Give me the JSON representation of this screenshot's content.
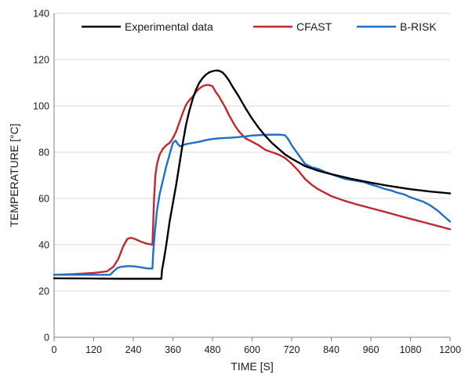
{
  "chart_data": {
    "type": "line",
    "title": "",
    "xlabel": "TIME [S]",
    "ylabel": "TEMPERATURE [°C]",
    "xlim": [
      0,
      1200
    ],
    "ylim": [
      0,
      140
    ],
    "xticks": [
      "0",
      "120",
      "240",
      "360",
      "480",
      "600",
      "720",
      "840",
      "960",
      "1080",
      "1200"
    ],
    "yticks": [
      "0",
      "20",
      "40",
      "60",
      "80",
      "100",
      "120",
      "140"
    ],
    "grid": "horizontal",
    "legend_position": "top",
    "series": [
      {
        "name": "Experimental data",
        "color": "#000000",
        "points": [
          [
            0,
            25.5
          ],
          [
            120,
            25.4
          ],
          [
            200,
            25.3
          ],
          [
            300,
            25.3
          ],
          [
            325,
            25.3
          ],
          [
            327,
            29
          ],
          [
            332,
            33
          ],
          [
            340,
            40
          ],
          [
            350,
            50
          ],
          [
            360,
            58
          ],
          [
            370,
            66
          ],
          [
            380,
            75
          ],
          [
            390,
            84
          ],
          [
            400,
            92
          ],
          [
            410,
            98
          ],
          [
            420,
            103
          ],
          [
            430,
            107
          ],
          [
            440,
            110
          ],
          [
            450,
            112
          ],
          [
            460,
            113.5
          ],
          [
            470,
            114.5
          ],
          [
            480,
            115
          ],
          [
            490,
            115.3
          ],
          [
            500,
            115.2
          ],
          [
            510,
            114.5
          ],
          [
            520,
            113
          ],
          [
            530,
            111
          ],
          [
            540,
            108.5
          ],
          [
            560,
            104
          ],
          [
            580,
            99
          ],
          [
            600,
            94.5
          ],
          [
            620,
            90.5
          ],
          [
            640,
            87
          ],
          [
            660,
            84
          ],
          [
            680,
            81.5
          ],
          [
            700,
            79
          ],
          [
            720,
            77.2
          ],
          [
            760,
            74
          ],
          [
            800,
            72
          ],
          [
            840,
            70.5
          ],
          [
            900,
            68.5
          ],
          [
            960,
            66.8
          ],
          [
            1020,
            65.3
          ],
          [
            1080,
            64
          ],
          [
            1140,
            63
          ],
          [
            1200,
            62.2
          ]
        ]
      },
      {
        "name": "CFAST",
        "color": "#c0282d",
        "points": [
          [
            0,
            27
          ],
          [
            60,
            27.3
          ],
          [
            120,
            27.8
          ],
          [
            160,
            28.5
          ],
          [
            180,
            30.5
          ],
          [
            195,
            34
          ],
          [
            210,
            39.5
          ],
          [
            222,
            42.5
          ],
          [
            232,
            43
          ],
          [
            245,
            42.5
          ],
          [
            260,
            41.5
          ],
          [
            280,
            40.5
          ],
          [
            298,
            40
          ],
          [
            300,
            48
          ],
          [
            303,
            60
          ],
          [
            307,
            70
          ],
          [
            312,
            75
          ],
          [
            320,
            79
          ],
          [
            330,
            81.5
          ],
          [
            340,
            83
          ],
          [
            350,
            84
          ],
          [
            360,
            86
          ],
          [
            370,
            89
          ],
          [
            380,
            93
          ],
          [
            390,
            97
          ],
          [
            400,
            100.5
          ],
          [
            410,
            102.5
          ],
          [
            420,
            104
          ],
          [
            430,
            106
          ],
          [
            440,
            107.5
          ],
          [
            450,
            108.5
          ],
          [
            460,
            109
          ],
          [
            470,
            109
          ],
          [
            480,
            108.5
          ],
          [
            490,
            106
          ],
          [
            500,
            104
          ],
          [
            510,
            101.5
          ],
          [
            520,
            99
          ],
          [
            530,
            96
          ],
          [
            540,
            93.5
          ],
          [
            550,
            91
          ],
          [
            560,
            89
          ],
          [
            570,
            87.5
          ],
          [
            580,
            86
          ],
          [
            600,
            84.5
          ],
          [
            620,
            83
          ],
          [
            640,
            81
          ],
          [
            660,
            80
          ],
          [
            680,
            79
          ],
          [
            700,
            77.5
          ],
          [
            720,
            75
          ],
          [
            740,
            72
          ],
          [
            760,
            68.5
          ],
          [
            780,
            66
          ],
          [
            800,
            64
          ],
          [
            840,
            61
          ],
          [
            880,
            59
          ],
          [
            920,
            57.3
          ],
          [
            960,
            55.8
          ],
          [
            1000,
            54.3
          ],
          [
            1040,
            52.7
          ],
          [
            1080,
            51.2
          ],
          [
            1120,
            49.7
          ],
          [
            1160,
            48.2
          ],
          [
            1200,
            46.7
          ]
        ]
      },
      {
        "name": "B-RISK",
        "color": "#1f6fc5",
        "points": [
          [
            0,
            27
          ],
          [
            120,
            27
          ],
          [
            170,
            27
          ],
          [
            180,
            28.5
          ],
          [
            192,
            30
          ],
          [
            205,
            30.5
          ],
          [
            225,
            30.8
          ],
          [
            245,
            30.6
          ],
          [
            265,
            30.2
          ],
          [
            280,
            29.8
          ],
          [
            298,
            29.7
          ],
          [
            300,
            36
          ],
          [
            305,
            45
          ],
          [
            312,
            55
          ],
          [
            320,
            62
          ],
          [
            330,
            68
          ],
          [
            340,
            74
          ],
          [
            350,
            79
          ],
          [
            360,
            84
          ],
          [
            368,
            85
          ],
          [
            375,
            83.5
          ],
          [
            382,
            82.5
          ],
          [
            390,
            83
          ],
          [
            400,
            83.5
          ],
          [
            420,
            84
          ],
          [
            440,
            84.5
          ],
          [
            460,
            85.2
          ],
          [
            480,
            85.7
          ],
          [
            500,
            86
          ],
          [
            540,
            86.3
          ],
          [
            580,
            86.8
          ],
          [
            600,
            87.2
          ],
          [
            640,
            87.5
          ],
          [
            680,
            87.6
          ],
          [
            700,
            87.3
          ],
          [
            710,
            85.5
          ],
          [
            720,
            83
          ],
          [
            740,
            79
          ],
          [
            760,
            75
          ],
          [
            780,
            73.5
          ],
          [
            800,
            72.8
          ],
          [
            820,
            71.5
          ],
          [
            840,
            70.5
          ],
          [
            860,
            69.5
          ],
          [
            880,
            68.5
          ],
          [
            900,
            68
          ],
          [
            920,
            67.5
          ],
          [
            940,
            67
          ],
          [
            960,
            66
          ],
          [
            980,
            65.2
          ],
          [
            1000,
            64.2
          ],
          [
            1020,
            63.5
          ],
          [
            1040,
            62.5
          ],
          [
            1060,
            61.8
          ],
          [
            1080,
            60.5
          ],
          [
            1100,
            59.5
          ],
          [
            1120,
            58.5
          ],
          [
            1140,
            57
          ],
          [
            1160,
            55
          ],
          [
            1180,
            52.5
          ],
          [
            1200,
            50
          ]
        ]
      }
    ]
  }
}
